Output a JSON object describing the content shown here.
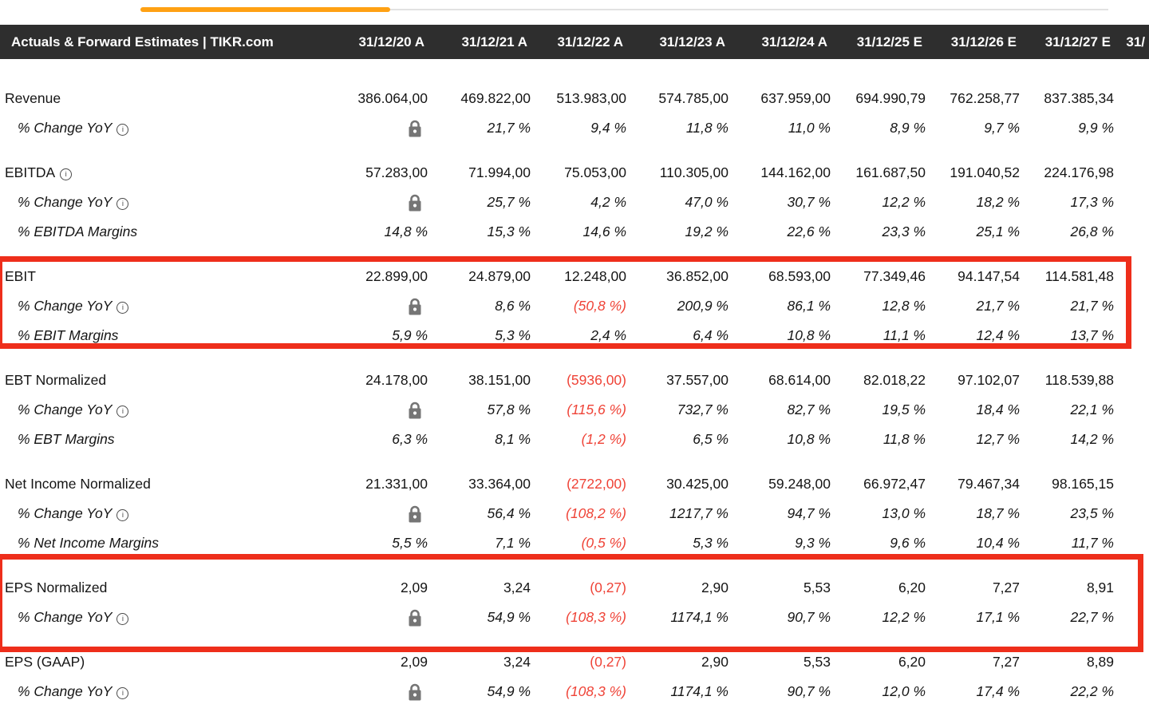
{
  "header": {
    "title": "Actuals & Forward Estimates | TIKR.com"
  },
  "columns": [
    "31/12/20 A",
    "31/12/21 A",
    "31/12/22 A",
    "31/12/23 A",
    "31/12/24 A",
    "31/12/25 E",
    "31/12/26 E",
    "31/12/27 E",
    "31/"
  ],
  "colors": {
    "accent_orange": "#ffa113",
    "scroll_track_gray": "#e2e2e2",
    "header_bg": "#2e2e2e",
    "highlight_red": "#ee2e1b",
    "negative_red": "#ef4337",
    "lock_gray": "#757575"
  },
  "icons": {
    "lock": "lock-icon",
    "info": "info-icon"
  },
  "sections": [
    {
      "highlighted": false,
      "rows": [
        {
          "label": "Revenue",
          "style": "main",
          "info": false,
          "lock": false,
          "values": [
            "386.064,00",
            "469.822,00",
            "513.983,00",
            "574.785,00",
            "637.959,00",
            "694.990,79",
            "762.258,77",
            "837.385,34"
          ]
        },
        {
          "label": "% Change YoY",
          "style": "sub",
          "info": true,
          "lock": true,
          "values": [
            "",
            "21,7 %",
            "9,4 %",
            "11,8 %",
            "11,0 %",
            "8,9 %",
            "9,7 %",
            "9,9 %"
          ]
        }
      ]
    },
    {
      "highlighted": false,
      "rows": [
        {
          "label": "EBITDA",
          "style": "main",
          "info": true,
          "lock": false,
          "values": [
            "57.283,00",
            "71.994,00",
            "75.053,00",
            "110.305,00",
            "144.162,00",
            "161.687,50",
            "191.040,52",
            "224.176,98"
          ]
        },
        {
          "label": "% Change YoY",
          "style": "sub",
          "info": true,
          "lock": true,
          "values": [
            "",
            "25,7 %",
            "4,2 %",
            "47,0 %",
            "30,7 %",
            "12,2 %",
            "18,2 %",
            "17,3 %"
          ]
        },
        {
          "label": "% EBITDA Margins",
          "style": "sub",
          "info": false,
          "lock": false,
          "values": [
            "14,8 %",
            "15,3 %",
            "14,6 %",
            "19,2 %",
            "22,6 %",
            "23,3 %",
            "25,1 %",
            "26,8 %"
          ]
        }
      ]
    },
    {
      "highlighted": true,
      "rows": [
        {
          "label": "EBIT",
          "style": "main",
          "info": false,
          "lock": false,
          "values": [
            "22.899,00",
            "24.879,00",
            "12.248,00",
            "36.852,00",
            "68.593,00",
            "77.349,46",
            "94.147,54",
            "114.581,48"
          ]
        },
        {
          "label": "% Change YoY",
          "style": "sub",
          "info": true,
          "lock": true,
          "values": [
            "",
            "8,6 %",
            "(50,8 %)",
            "200,9 %",
            "86,1 %",
            "12,8 %",
            "21,7 %",
            "21,7 %"
          ]
        },
        {
          "label": "% EBIT Margins",
          "style": "sub",
          "info": false,
          "lock": false,
          "values": [
            "5,9 %",
            "5,3 %",
            "2,4 %",
            "6,4 %",
            "10,8 %",
            "11,1 %",
            "12,4 %",
            "13,7 %"
          ]
        }
      ]
    },
    {
      "highlighted": false,
      "rows": [
        {
          "label": "EBT Normalized",
          "style": "main",
          "info": false,
          "lock": false,
          "values": [
            "24.178,00",
            "38.151,00",
            "(5936,00)",
            "37.557,00",
            "68.614,00",
            "82.018,22",
            "97.102,07",
            "118.539,88"
          ]
        },
        {
          "label": "% Change YoY",
          "style": "sub",
          "info": true,
          "lock": true,
          "values": [
            "",
            "57,8 %",
            "(115,6 %)",
            "732,7 %",
            "82,7 %",
            "19,5 %",
            "18,4 %",
            "22,1 %"
          ]
        },
        {
          "label": "% EBT Margins",
          "style": "sub",
          "info": false,
          "lock": false,
          "values": [
            "6,3 %",
            "8,1 %",
            "(1,2 %)",
            "6,5 %",
            "10,8 %",
            "11,8 %",
            "12,7 %",
            "14,2 %"
          ]
        }
      ]
    },
    {
      "highlighted": false,
      "rows": [
        {
          "label": "Net Income Normalized",
          "style": "main",
          "info": false,
          "lock": false,
          "values": [
            "21.331,00",
            "33.364,00",
            "(2722,00)",
            "30.425,00",
            "59.248,00",
            "66.972,47",
            "79.467,34",
            "98.165,15"
          ]
        },
        {
          "label": "% Change YoY",
          "style": "sub",
          "info": true,
          "lock": true,
          "values": [
            "",
            "56,4 %",
            "(108,2 %)",
            "1217,7 %",
            "94,7 %",
            "13,0 %",
            "18,7 %",
            "23,5 %"
          ]
        },
        {
          "label": "% Net Income Margins",
          "style": "sub",
          "info": false,
          "lock": false,
          "values": [
            "5,5 %",
            "7,1 %",
            "(0,5 %)",
            "5,3 %",
            "9,3 %",
            "9,6 %",
            "10,4 %",
            "11,7 %"
          ]
        }
      ]
    },
    {
      "highlighted": true,
      "rows": [
        {
          "label": "EPS Normalized",
          "style": "main",
          "info": false,
          "lock": false,
          "values": [
            "2,09",
            "3,24",
            "(0,27)",
            "2,90",
            "5,53",
            "6,20",
            "7,27",
            "8,91"
          ]
        },
        {
          "label": "% Change YoY",
          "style": "sub",
          "info": true,
          "lock": true,
          "values": [
            "",
            "54,9 %",
            "(108,3 %)",
            "1174,1 %",
            "90,7 %",
            "12,2 %",
            "17,1 %",
            "22,7 %"
          ]
        }
      ]
    },
    {
      "highlighted": false,
      "rows": [
        {
          "label": "EPS (GAAP)",
          "style": "main",
          "info": false,
          "lock": false,
          "values": [
            "2,09",
            "3,24",
            "(0,27)",
            "2,90",
            "5,53",
            "6,20",
            "7,27",
            "8,89"
          ]
        },
        {
          "label": "% Change YoY",
          "style": "sub",
          "info": true,
          "lock": true,
          "values": [
            "",
            "54,9 %",
            "(108,3 %)",
            "1174,1 %",
            "90,7 %",
            "12,0 %",
            "17,4 %",
            "22,2 %"
          ]
        }
      ]
    }
  ]
}
